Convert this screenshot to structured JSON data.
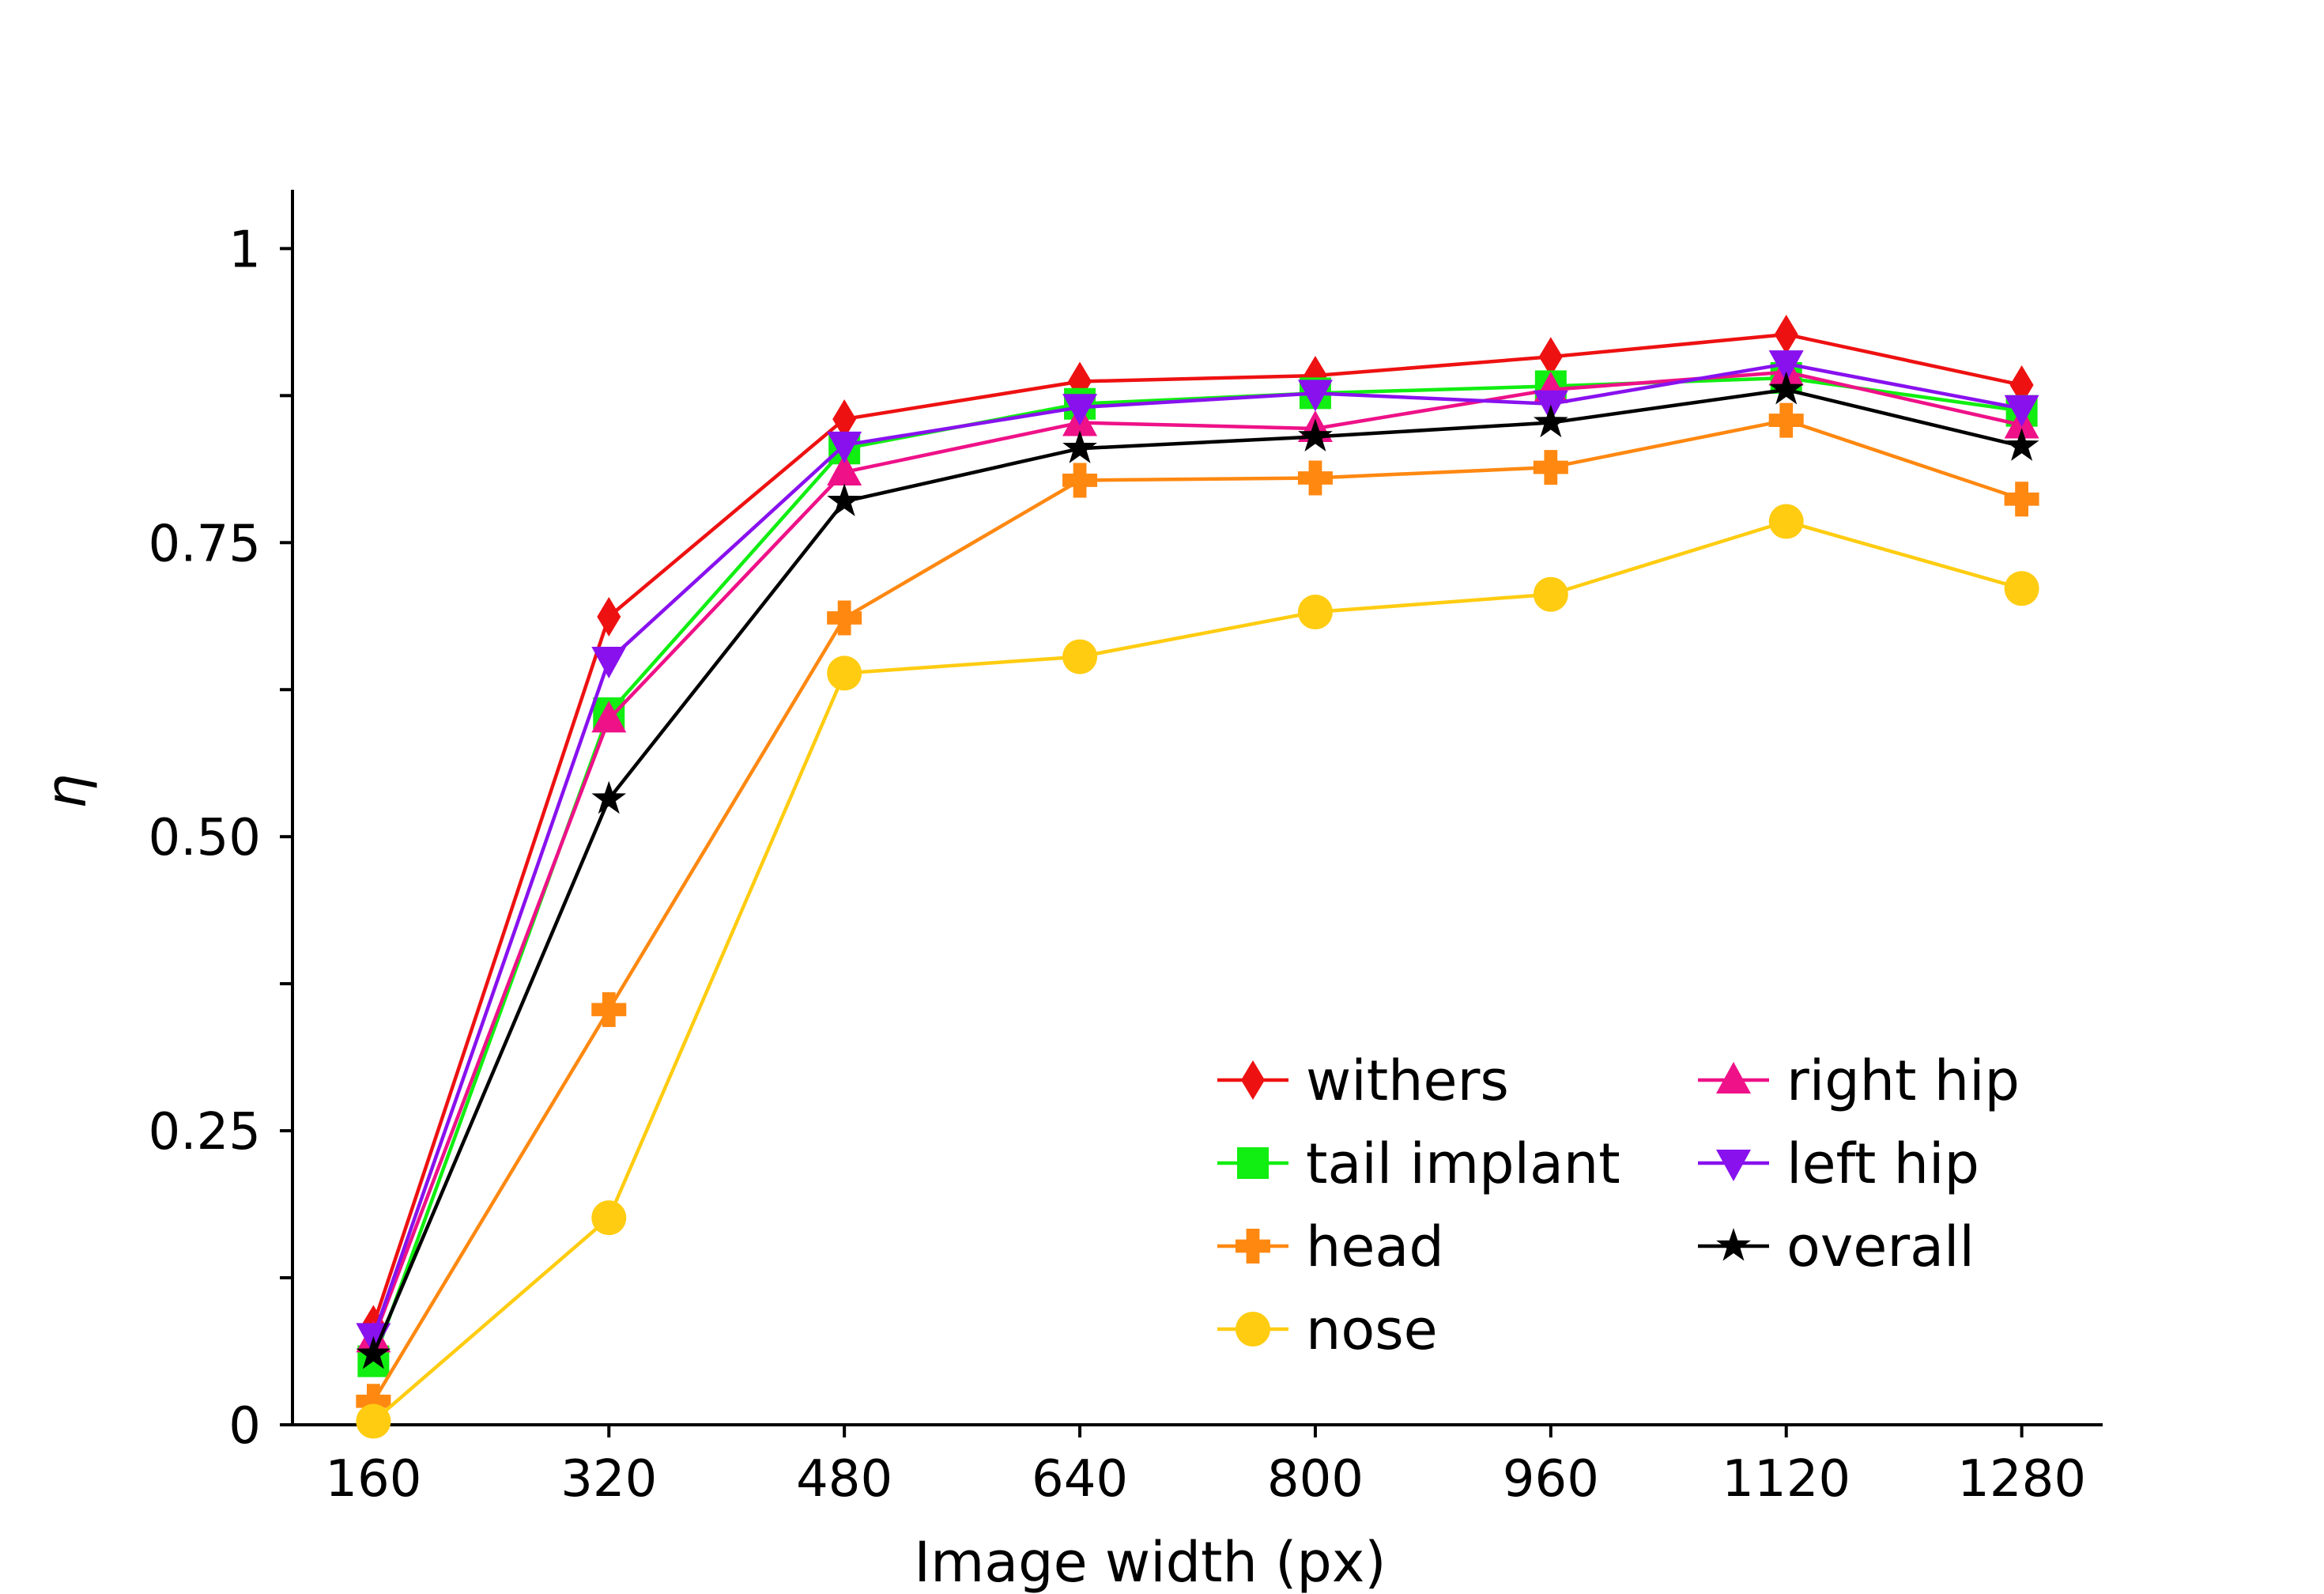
{
  "chart_data": {
    "type": "line",
    "title": "",
    "xlabel": "Image width (px)",
    "ylabel": "η",
    "categories": [
      "160",
      "320",
      "480",
      "640",
      "800",
      "960",
      "1120",
      "1280"
    ],
    "x": [
      160,
      320,
      480,
      640,
      800,
      960,
      1120,
      1280
    ],
    "xlim": [
      105,
      1335
    ],
    "ylim": [
      0,
      1.05
    ],
    "yticks": [
      {
        "value": 0,
        "label": "0"
      },
      {
        "value": 0.125,
        "label": ""
      },
      {
        "value": 0.25,
        "label": "0.25"
      },
      {
        "value": 0.375,
        "label": ""
      },
      {
        "value": 0.5,
        "label": "0.50"
      },
      {
        "value": 0.625,
        "label": ""
      },
      {
        "value": 0.75,
        "label": "0.75"
      },
      {
        "value": 0.875,
        "label": ""
      },
      {
        "value": 1,
        "label": "1"
      }
    ],
    "grid": false,
    "legend_position": "bottom-right",
    "series": [
      {
        "name": "withers",
        "color": "#ee1111",
        "marker": "diamond",
        "values": [
          0.085,
          0.687,
          0.855,
          0.887,
          0.892,
          0.908,
          0.927,
          0.884
        ]
      },
      {
        "name": "tail implant",
        "color": "#11ee11",
        "marker": "square",
        "values": [
          0.054,
          0.605,
          0.83,
          0.868,
          0.877,
          0.883,
          0.89,
          0.862
        ]
      },
      {
        "name": "head",
        "color": "#ff8811",
        "marker": "plus",
        "values": [
          0.02,
          0.353,
          0.686,
          0.803,
          0.805,
          0.814,
          0.854,
          0.787
        ]
      },
      {
        "name": "nose",
        "color": "#ffcc11",
        "marker": "circle",
        "values": [
          0.003,
          0.176,
          0.639,
          0.653,
          0.691,
          0.706,
          0.768,
          0.711
        ]
      },
      {
        "name": "right hip",
        "color": "#ee1188",
        "marker": "triangle-up",
        "values": [
          0.073,
          0.6,
          0.81,
          0.852,
          0.847,
          0.88,
          0.895,
          0.85
        ]
      },
      {
        "name": "left hip",
        "color": "#8811ee",
        "marker": "triangle-down",
        "values": [
          0.075,
          0.65,
          0.833,
          0.865,
          0.877,
          0.868,
          0.902,
          0.864
        ]
      },
      {
        "name": "overall",
        "color": "#000000",
        "marker": "star",
        "values": [
          0.06,
          0.532,
          0.785,
          0.83,
          0.84,
          0.852,
          0.88,
          0.832
        ]
      }
    ],
    "legend_columns": [
      [
        "withers",
        "tail implant",
        "head",
        "nose"
      ],
      [
        "right hip",
        "left hip",
        "overall"
      ]
    ]
  }
}
